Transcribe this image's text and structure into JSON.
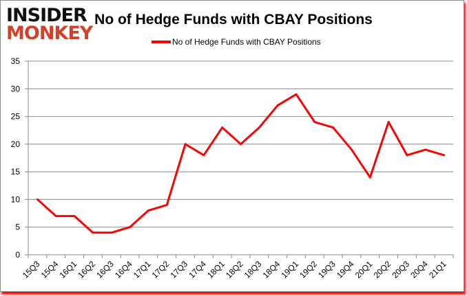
{
  "logo": {
    "line1": "INSIDER",
    "line2": "MONKEY"
  },
  "chart_data": {
    "type": "line",
    "title": "No of Hedge Funds with CBAY Positions",
    "categories": [
      "15Q3",
      "15Q4",
      "16Q1",
      "16Q2",
      "16Q3",
      "16Q4",
      "17Q1",
      "17Q2",
      "17Q3",
      "17Q4",
      "18Q1",
      "18Q2",
      "18Q3",
      "18Q4",
      "19Q1",
      "19Q2",
      "19Q3",
      "19Q4",
      "20Q1",
      "20Q2",
      "20Q3",
      "20Q4",
      "21Q1"
    ],
    "series": [
      {
        "name": "No of Hedge Funds with CBAY Positions",
        "color": "#ff0000",
        "values": [
          10,
          7,
          7,
          4,
          4,
          5,
          8,
          9,
          20,
          18,
          23,
          20,
          23,
          27,
          29,
          24,
          23,
          19,
          14,
          24,
          18,
          19,
          18
        ]
      }
    ],
    "ylim": [
      0,
      35
    ],
    "yticks": [
      0,
      5,
      10,
      15,
      20,
      25,
      30,
      35
    ],
    "grid": true,
    "legend": "top-center",
    "xlabel": "",
    "ylabel": ""
  }
}
